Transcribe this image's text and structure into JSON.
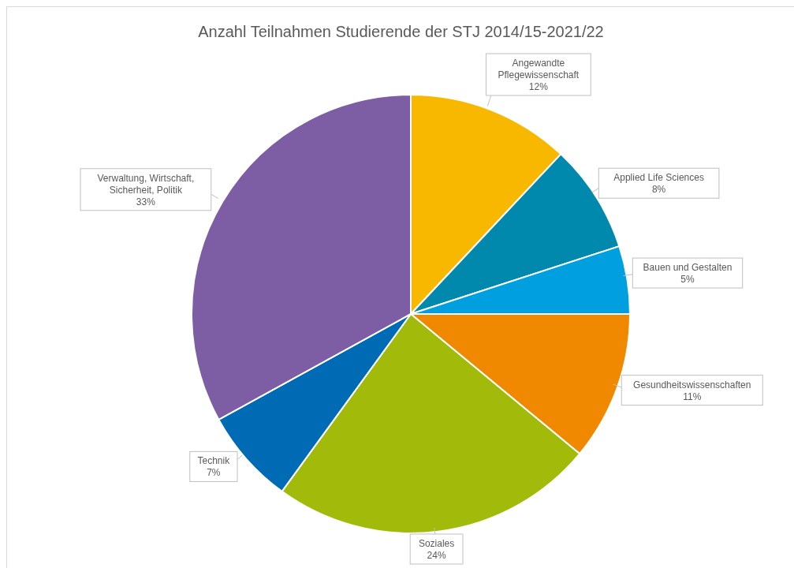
{
  "chart_data": {
    "type": "pie",
    "title": "Anzahl Teilnahmen Studierende der STJ 2014/15-2021/22",
    "categories": [
      "Angewandte Pflegewissenschaft",
      "Applied Life Sciences",
      "Bauen und Gestalten",
      "Gesundheitswissenschaften",
      "Soziales",
      "Technik",
      "Verwaltung, Wirtschaft, Sicherheit, Politik"
    ],
    "values": [
      12,
      8,
      5,
      11,
      24,
      7,
      33
    ],
    "value_labels": [
      "12%",
      "8%",
      "5%",
      "11%",
      "24%",
      "7%",
      "33%"
    ],
    "colors": [
      "#f9b800",
      "#0089ad",
      "#00a0e0",
      "#f08800",
      "#a2bb0a",
      "#006bb5",
      "#7d5ea5"
    ],
    "legend": false
  }
}
